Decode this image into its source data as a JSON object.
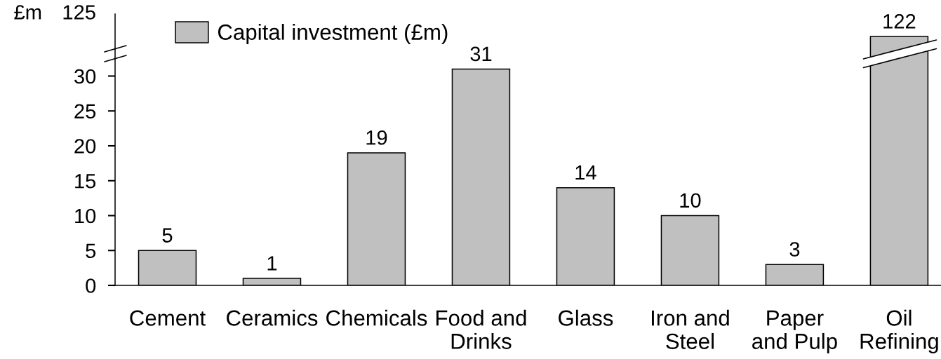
{
  "chart_data": [
    {
      "type": "bar",
      "ylabel": "£m",
      "annotations": [
        "125"
      ],
      "categories": [
        null,
        null,
        null,
        null,
        null,
        null,
        null,
        null
      ],
      "series": [
        {
          "name": "Capital investment (£m)",
          "color": "#c0c0c0",
          "values": [
            null,
            null,
            null,
            null,
            null,
            null,
            null,
            122
          ]
        }
      ],
      "data_labels": true,
      "legend": "top left"
    },
    {
      "type": "bar",
      "categories": [
        "Cement",
        "Ceramics",
        "Chemicals",
        "Food and\nDrinks",
        "Glass",
        "Iron and\nSteel",
        "Paper\nand Pulp",
        "Oil\nRefining"
      ],
      "series": [
        {
          "color": "#c0c0c0",
          "values": [
            5,
            1,
            19,
            31,
            14,
            10,
            3,
            null
          ],
          "value_labels": [
            "5",
            "1",
            "19",
            "31",
            "14",
            "10",
            "3",
            null
          ]
        }
      ],
      "ylim": [
        0,
        32.5
      ],
      "yticks": [
        0,
        5,
        10,
        15,
        20,
        25,
        30
      ]
    }
  ]
}
